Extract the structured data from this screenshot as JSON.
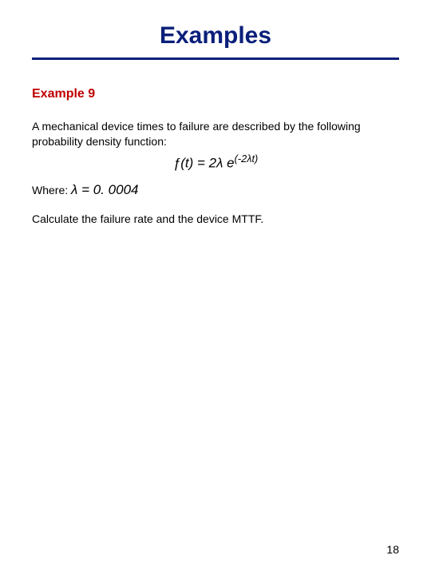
{
  "title": {
    "text": "Examples",
    "color": "#0a1f7a",
    "fontsize": 30
  },
  "rule": {
    "color": "#0a1f7a",
    "thickness": 3
  },
  "subtitle": {
    "text": "Example 9",
    "color": "#c00000",
    "fontsize": 16
  },
  "body": {
    "intro": "A mechanical device times to failure are described by the following probability density function:",
    "color": "#000000",
    "fontsize": 14
  },
  "formula": {
    "main": "ƒ(t) = 2λ e",
    "exponent": "(-2λt)",
    "fontsize": 17
  },
  "where": {
    "label": "Where: ",
    "value": "λ = 0. 0004",
    "label_fontsize": 14,
    "value_fontsize": 17
  },
  "calc": {
    "text": "Calculate the failure rate and the device MTTF.",
    "fontsize": 14
  },
  "page_number": {
    "text": "18",
    "fontsize": 14,
    "color": "#000000"
  }
}
